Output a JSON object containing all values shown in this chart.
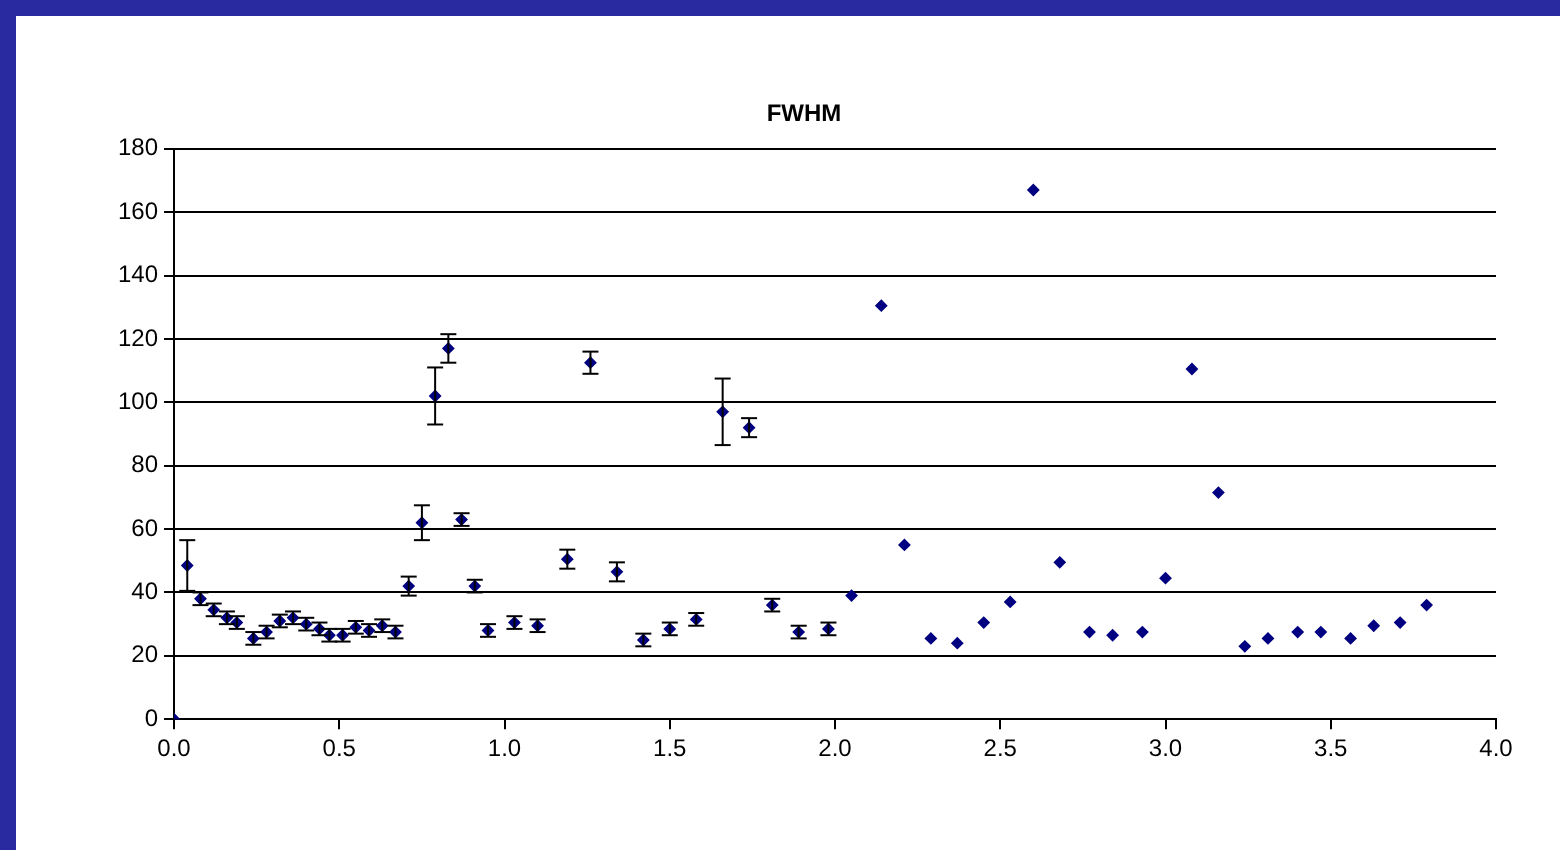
{
  "chart_data": {
    "type": "scatter",
    "title": "FWHM",
    "marker": "diamond",
    "grid": "y",
    "legend": false,
    "xlim": [
      0,
      4
    ],
    "xticks": [
      {
        "value": 0,
        "label": "0.0"
      },
      {
        "value": 0.5,
        "label": "0.5"
      },
      {
        "value": 1,
        "label": "1.0"
      },
      {
        "value": 1.5,
        "label": "1.5"
      },
      {
        "value": 2,
        "label": "2.0"
      },
      {
        "value": 2.5,
        "label": "2.5"
      },
      {
        "value": 3,
        "label": "3.0"
      },
      {
        "value": 3.5,
        "label": "3.5"
      },
      {
        "value": 4,
        "label": "4.0"
      }
    ],
    "ylim": [
      0,
      180
    ],
    "yticks": [
      0,
      20,
      40,
      60,
      80,
      100,
      120,
      140,
      160,
      180
    ],
    "series": [
      {
        "color": "#000080",
        "x": [
          0,
          0.04,
          0.08,
          0.12,
          0.16,
          0.19,
          0.24,
          0.28,
          0.32,
          0.36,
          0.4,
          0.44,
          0.47,
          0.51,
          0.55,
          0.59,
          0.63,
          0.67,
          0.71,
          0.75,
          0.79,
          0.83,
          0.87,
          0.91,
          0.95,
          1.03,
          1.1,
          1.19,
          1.26,
          1.34,
          1.42,
          1.5,
          1.58,
          1.66,
          1.74,
          1.81,
          1.89,
          1.98,
          2.05,
          2.14,
          2.21,
          2.29,
          2.37,
          2.45,
          2.53,
          2.6,
          2.68,
          2.77,
          2.84,
          2.93,
          3,
          3.08,
          3.16,
          3.24,
          3.31,
          3.4,
          3.47,
          3.56,
          3.63,
          3.71,
          3.79
        ],
        "values": [
          0,
          48.5,
          38,
          34.5,
          32,
          30.5,
          25.5,
          27.5,
          31,
          32,
          30,
          28.5,
          26.5,
          26.5,
          29,
          28,
          29.5,
          27.5,
          42,
          62,
          102,
          117,
          63,
          42,
          28,
          30.5,
          29.5,
          50.5,
          112.5,
          46.5,
          25,
          28.5,
          31.5,
          97,
          92,
          36,
          27.5,
          28.5,
          39,
          130.5,
          55,
          25.5,
          24,
          30.5,
          37,
          167,
          49.5,
          27.5,
          26.5,
          27.5,
          44.5,
          110.5,
          71.5,
          23,
          25.5,
          27.5,
          27.5,
          25.5,
          29.5,
          30.5,
          36
        ],
        "errors": [
          null,
          8,
          2,
          2,
          2,
          2,
          2,
          2,
          2,
          2,
          2,
          2,
          2,
          2,
          2,
          2,
          2,
          2,
          3,
          5.5,
          9,
          4.5,
          2,
          2,
          2,
          2,
          2,
          3,
          3.5,
          3,
          2,
          2,
          2,
          10.5,
          3,
          2,
          2,
          2,
          null,
          null,
          null,
          null,
          null,
          null,
          null,
          null,
          null,
          null,
          null,
          null,
          null,
          null,
          null,
          null,
          null,
          null,
          null,
          null,
          null,
          null,
          null
        ]
      }
    ]
  }
}
